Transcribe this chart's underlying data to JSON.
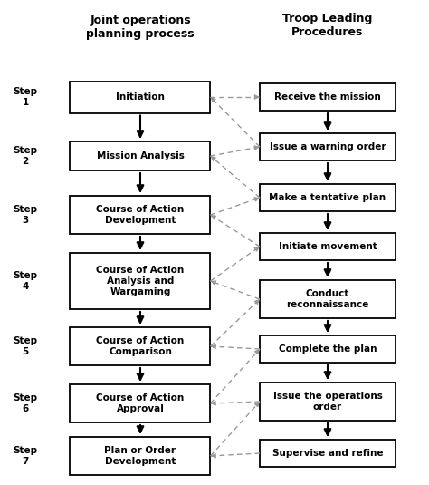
{
  "title_left": "Joint operations\nplanning process",
  "title_right": "Troop Leading\nProcedures",
  "left_steps": [
    {
      "label": "Initiation",
      "step": "Step\n1"
    },
    {
      "label": "Mission Analysis",
      "step": "Step\n2"
    },
    {
      "label": "Course of Action\nDevelopment",
      "step": "Step\n3"
    },
    {
      "label": "Course of Action\nAnalysis and\nWargaming",
      "step": "Step\n4"
    },
    {
      "label": "Course of Action\nComparison",
      "step": "Step\n5"
    },
    {
      "label": "Course of Action\nApproval",
      "step": "Step\n6"
    },
    {
      "label": "Plan or Order\nDevelopment",
      "step": "Step\n7"
    }
  ],
  "right_steps": [
    {
      "label": "Receive the mission"
    },
    {
      "label": "Issue a warning order"
    },
    {
      "label": "Make a tentative plan"
    },
    {
      "label": "Initiate movement"
    },
    {
      "label": "Conduct\nreconnaissance"
    },
    {
      "label": "Complete the plan"
    },
    {
      "label": "Issue the operations\norder"
    },
    {
      "label": "Supervise and refine"
    }
  ],
  "box_color": "#ffffff",
  "box_edge_color": "#000000",
  "arrow_color": "#000000",
  "dashed_arrow_color": "#999999",
  "background_color": "#ffffff",
  "font_size": 7.5,
  "title_font_size": 9
}
